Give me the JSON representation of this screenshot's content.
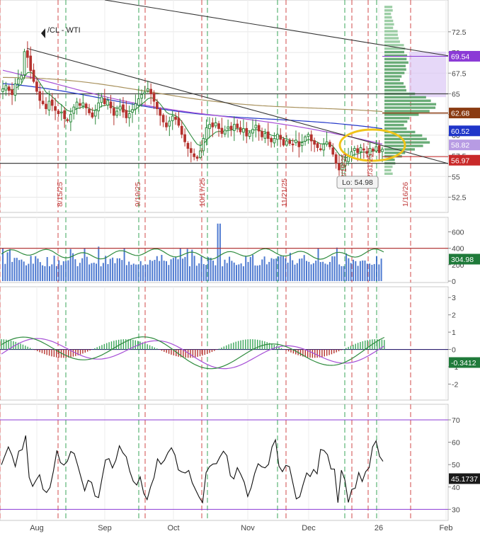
{
  "chart_data": [
    {
      "type": "candlestick",
      "panel": "price",
      "symbol_label": "/CL - WTI",
      "ylim": [
        51,
        76
      ],
      "y_ticks": [
        52.5,
        55,
        57.5,
        60,
        62.5,
        65,
        67.5,
        70,
        72.5
      ],
      "grid": true,
      "low_annotation": "Lo: 54.98",
      "price_tags": [
        {
          "label": "69.54",
          "value": 69.54,
          "color": "#8b3ad6"
        },
        {
          "label": "62.68",
          "value": 62.68,
          "color": "#8a3b12"
        },
        {
          "label": "60.52",
          "value": 60.52,
          "color": "#1f35c9"
        },
        {
          "label": "58.82",
          "value": 58.82,
          "color": "#b79be3"
        },
        {
          "label": "56.97",
          "value": 56.97,
          "color": "#c92a2a"
        }
      ],
      "horizontal_levels": [
        65.0,
        56.6
      ],
      "date_markers": [
        "8/15/25",
        "9/19/25",
        "10/17/25",
        "11/21/25",
        "12/19/25",
        "12/31/25",
        "1/16/26"
      ],
      "highlight_colors": {
        "up": "#2e8b3d",
        "down": "#b5332e",
        "ellipse": "#f0c419"
      },
      "closes": [
        65.6,
        66.0,
        65.4,
        64.9,
        66.2,
        66.8,
        67.2,
        70.1,
        69.4,
        67.8,
        66.5,
        65.3,
        64.2,
        63.8,
        63.2,
        64.1,
        63.6,
        63.0,
        62.6,
        62.8,
        62.0,
        61.8,
        62.5,
        63.4,
        64.0,
        63.6,
        63.9,
        63.3,
        62.7,
        62.2,
        63.0,
        63.9,
        64.6,
        63.8,
        64.2,
        63.3,
        62.4,
        62.9,
        63.5,
        62.8,
        62.1,
        62.6,
        63.1,
        63.8,
        64.4,
        64.9,
        65.2,
        65.6,
        65.0,
        64.1,
        63.2,
        62.4,
        61.6,
        61.0,
        61.7,
        62.3,
        61.9,
        61.2,
        60.1,
        59.2,
        58.4,
        57.9,
        57.4,
        57.2,
        58.1,
        59.6,
        60.9,
        61.3,
        61.0,
        61.5,
        60.8,
        60.2,
        60.6,
        61.0,
        60.7,
        61.3,
        60.9,
        60.4,
        60.8,
        59.9,
        60.3,
        60.7,
        61.2,
        60.5,
        59.8,
        60.2,
        59.6,
        59.2,
        59.6,
        60.1,
        59.5,
        58.8,
        59.3,
        59.0,
        58.9,
        59.4,
        58.6,
        59.1,
        59.8,
        60.1,
        59.3,
        58.9,
        58.5,
        58.3,
        58.9,
        59.2,
        58.6,
        57.7,
        56.6,
        55.8,
        56.4,
        56.9,
        57.4,
        58.0,
        58.4,
        57.9,
        58.5,
        58.2,
        57.8,
        58.4,
        58.1,
        58.6,
        57.9,
        58.3
      ],
      "moving_averages": {
        "sma_200": {
          "start": 66.8,
          "end": 62.6
        },
        "sma_100": {
          "start": 65.7,
          "end": 60.5
        },
        "sma_50": {
          "start": 67.3,
          "end": 58.8
        }
      },
      "trendlines": [
        {
          "from": [
            "7/28/25",
            75.9
          ],
          "to": [
            "2/1/26",
            69.6
          ]
        },
        {
          "from": [
            "7/30/25",
            70.5
          ],
          "to": [
            "2/1/26",
            55.5
          ]
        }
      ]
    },
    {
      "type": "bar",
      "panel": "volume",
      "y_ticks": [
        0,
        200,
        400,
        600
      ],
      "ylim": [
        0,
        750
      ],
      "last_value_label": "304.98",
      "average_level": 400
    },
    {
      "type": "histogram",
      "panel": "macd",
      "y_ticks": [
        -2,
        -1,
        0,
        1,
        2,
        3
      ],
      "ylim": [
        -2.8,
        3.5
      ],
      "last_value_label": "-0.3412",
      "line_colors": {
        "macd": "#2e8b3d",
        "signal": "#a64fd6"
      }
    },
    {
      "type": "line",
      "panel": "rsi",
      "y_ticks": [
        30,
        40,
        50,
        60,
        70
      ],
      "ylim": [
        26,
        76
      ],
      "bands": [
        70,
        30
      ],
      "last_value_label": "45.1737",
      "x_ticks": [
        "Aug",
        "Sep",
        "Oct",
        "Nov",
        "Dec",
        "26",
        "Feb"
      ]
    }
  ]
}
